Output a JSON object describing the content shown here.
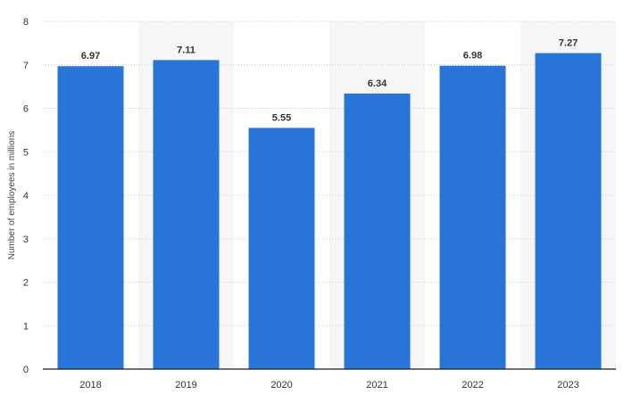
{
  "chart_data": {
    "type": "bar",
    "categories": [
      "2018",
      "2019",
      "2020",
      "2021",
      "2022",
      "2023"
    ],
    "values": [
      6.97,
      7.11,
      5.55,
      6.34,
      6.98,
      7.27
    ],
    "value_labels": [
      "6.97",
      "7.11",
      "5.55",
      "6.34",
      "6.98",
      "7.27"
    ],
    "title": "",
    "xlabel": "",
    "ylabel": "Number of employees in millions",
    "ylim": [
      0,
      8
    ],
    "yticks": [
      "0",
      "1",
      "2",
      "3",
      "4",
      "5",
      "6",
      "7",
      "8"
    ],
    "grid": true,
    "legend": "none",
    "colors": {
      "bar": "#2874d8",
      "band": "#f6f6f6",
      "grid": "#c9c9c9"
    }
  }
}
